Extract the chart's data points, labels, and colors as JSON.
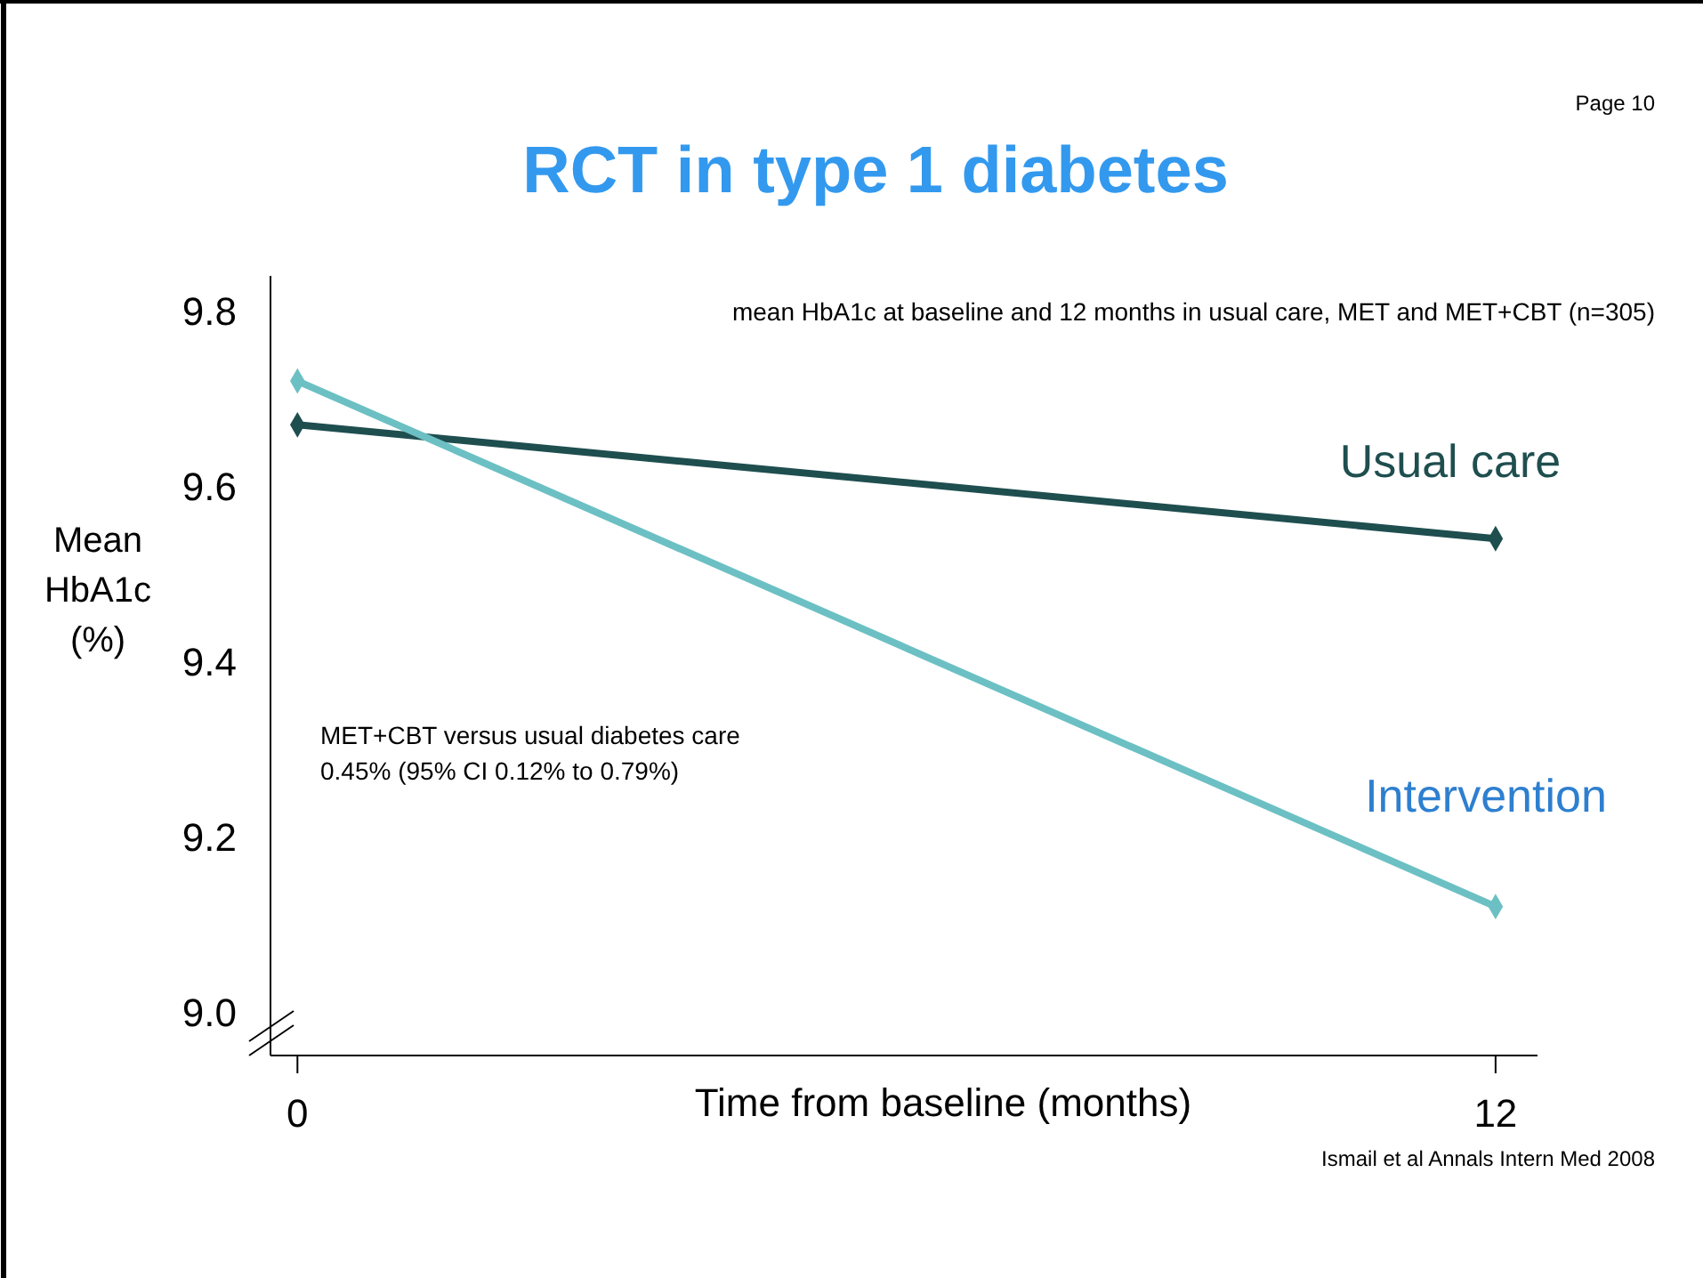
{
  "chart_data": {
    "type": "line",
    "title": "RCT in type 1 diabetes",
    "subtitle": "mean HbA1c at baseline and 12 months in usual care, MET and MET+CBT (n=305)",
    "xlabel": "Time from baseline (months)",
    "ylabel": "Mean\nHbA1c\n(%)",
    "x": [
      0,
      12
    ],
    "series": [
      {
        "name": "Usual care",
        "color": "#1f4e4f",
        "values": [
          9.67,
          9.54
        ]
      },
      {
        "name": "Intervention",
        "color": "#6cc0c4",
        "values": [
          9.72,
          9.12
        ]
      }
    ],
    "xlim": [
      -0.27,
      12.42
    ],
    "xticks": [
      0,
      12
    ],
    "ylim": [
      8.95,
      9.84
    ],
    "yticks": [
      {
        "value": 9.0,
        "label": "9.0"
      },
      {
        "value": 9.2,
        "label": "9.2"
      },
      {
        "value": 9.4,
        "label": "9.4"
      },
      {
        "value": 9.6,
        "label": "9.6"
      },
      {
        "value": 9.8,
        "label": "9.8"
      }
    ],
    "grid": false,
    "marker": "diamond",
    "line_style": "solid",
    "annotations": [
      "Page 10",
      "MET+CBT versus usual diabetes care\n0.45% (95% CI 0.12% to 0.79%)",
      "Ismail et al Annals Intern Med 2008"
    ]
  }
}
